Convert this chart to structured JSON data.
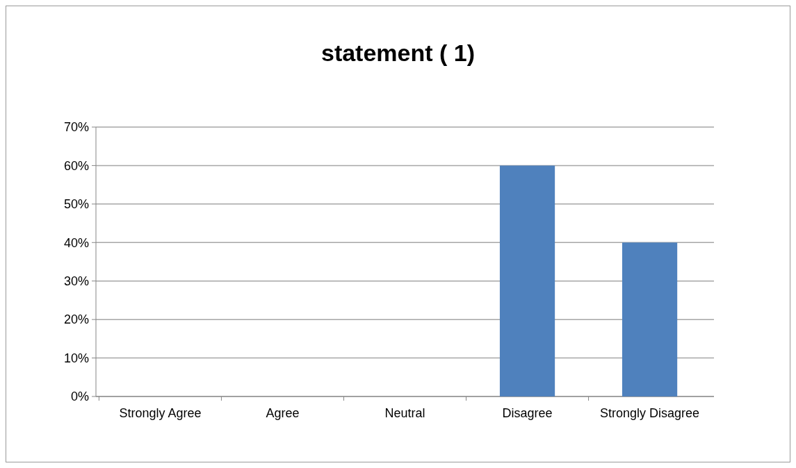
{
  "chart_data": {
    "type": "bar",
    "title": "statement ( 1)",
    "categories": [
      "Strongly Agree",
      "Agree",
      "Neutral",
      "Disagree",
      "Strongly Disagree"
    ],
    "values": [
      0,
      0,
      0,
      60,
      40
    ],
    "color": "#4f81bd",
    "ylim": [
      0,
      70
    ],
    "yticks": [
      {
        "value": 0,
        "label": "0%"
      },
      {
        "value": 10,
        "label": "10%"
      },
      {
        "value": 20,
        "label": "20%"
      },
      {
        "value": 30,
        "label": "30%"
      },
      {
        "value": 40,
        "label": "40%"
      },
      {
        "value": 50,
        "label": "50%"
      },
      {
        "value": 60,
        "label": "60%"
      },
      {
        "value": 70,
        "label": "70%"
      }
    ],
    "grid": "y"
  }
}
